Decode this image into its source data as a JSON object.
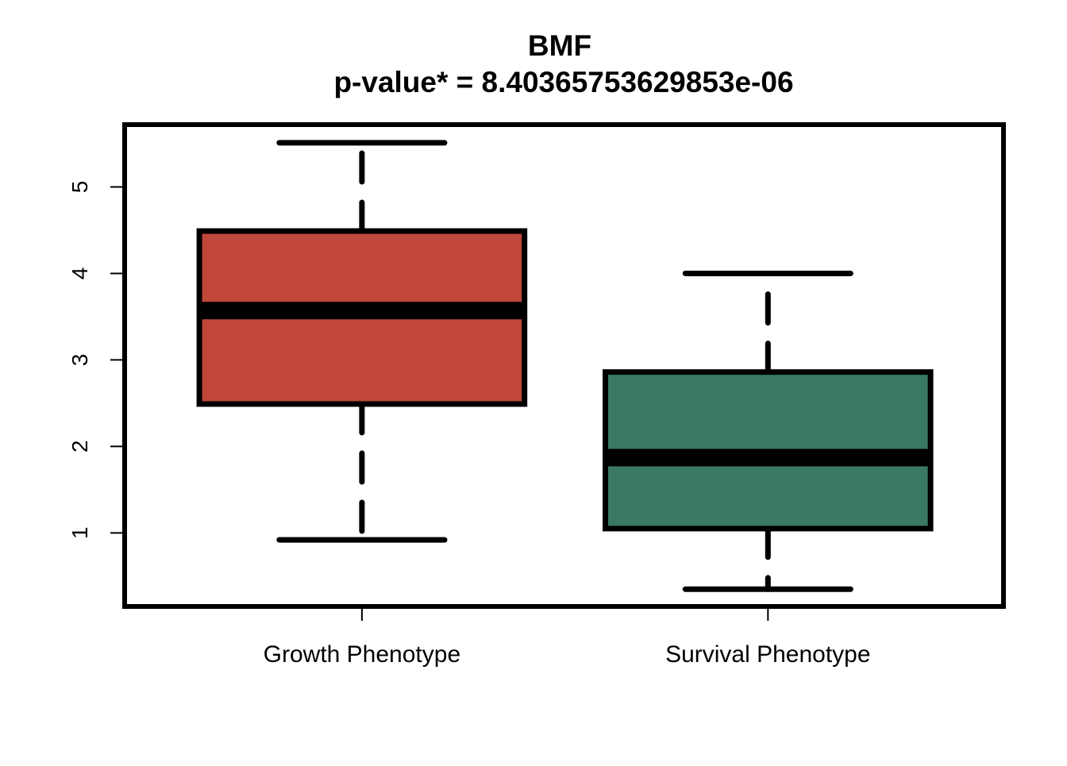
{
  "chart_data": {
    "type": "box",
    "title": "BMF",
    "subtitle": "p-value* = 8.40365753629853e-06",
    "xlabel": "",
    "ylabel": "",
    "categories": [
      "Growth Phenotype",
      "Survival Phenotype"
    ],
    "boxes": [
      {
        "category": "Growth Phenotype",
        "whisker_low": 0.92,
        "q1": 2.49,
        "median": 3.57,
        "q3": 4.49,
        "whisker_high": 5.51,
        "color": "#C0473A"
      },
      {
        "category": "Survival Phenotype",
        "whisker_low": 0.35,
        "q1": 1.05,
        "median": 1.87,
        "q3": 2.86,
        "whisker_high": 4.0,
        "color": "#3A7A62"
      }
    ],
    "yticks": [
      1,
      2,
      3,
      4,
      5
    ],
    "ytick_labels": [
      "1",
      "2",
      "3",
      "4",
      "5"
    ],
    "ylim": [
      0.15,
      5.72
    ],
    "grid": false,
    "legend": "none"
  }
}
